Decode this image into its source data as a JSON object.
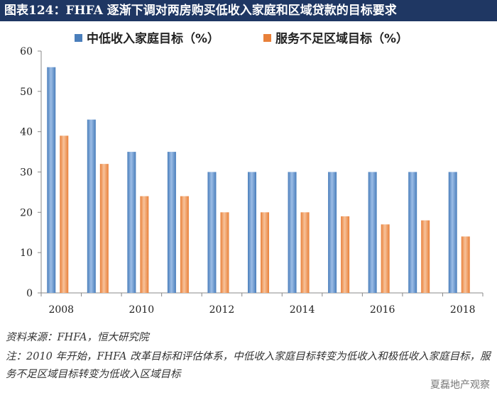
{
  "title": "图表124：FHFA 逐渐下调对两房购买低收入家庭和区域贷款的目标要求",
  "source": "资料来源：FHFA，恒大研究院",
  "note": "注：2010 年开始，FHFA 改革目标和评估体系，中低收入家庭目标转变为低收入和极低收入家庭目标，服务不足区域目标转变为低收入区域目标",
  "watermark": "夏磊地产观察",
  "colors": {
    "title_bg": "#1f3763",
    "series1": "#4a7ebb",
    "series2": "#e8803a"
  },
  "chart_data": {
    "type": "bar",
    "categories": [
      "2008",
      "2009",
      "2010",
      "2011",
      "2012",
      "2013",
      "2014",
      "2015",
      "2016",
      "2017",
      "2018"
    ],
    "x_tick_labels": [
      "2008",
      "2010",
      "2012",
      "2014",
      "2016",
      "2018"
    ],
    "series": [
      {
        "name": "中低收入家庭目标（%）",
        "values": [
          56,
          43,
          35,
          35,
          30,
          30,
          30,
          30,
          30,
          30,
          30
        ]
      },
      {
        "name": "服务不足区域目标（%）",
        "values": [
          39,
          32,
          24,
          24,
          20,
          20,
          20,
          19,
          17,
          18,
          14
        ]
      }
    ],
    "ylim": [
      0,
      60
    ],
    "yticks": [
      0,
      10,
      20,
      30,
      40,
      50,
      60
    ],
    "legend_position": "top",
    "grid": false
  }
}
